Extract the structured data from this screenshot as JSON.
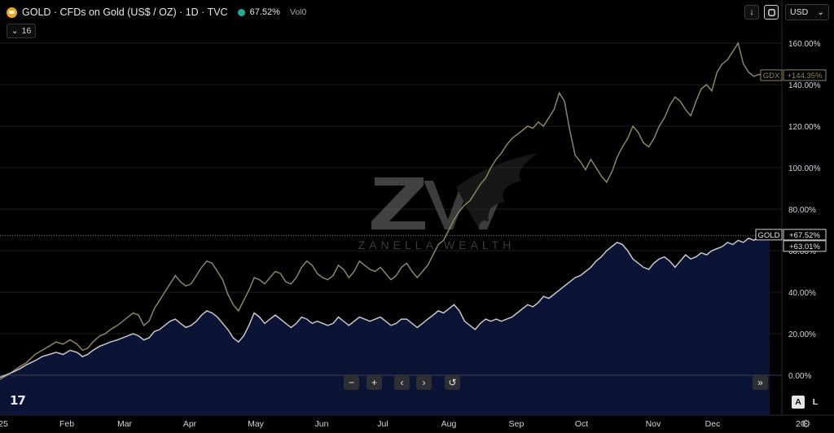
{
  "header": {
    "title": "GOLD · CFDs on Gold (US$ / OZ) · 1D · TVC",
    "value": "67.52%",
    "volume_label": "Vol0",
    "collapse_count": "16"
  },
  "toolbar": {
    "currency": "USD",
    "download_icon": "arrow-down-icon",
    "refresh_icon": "refresh-icon"
  },
  "navigation": {
    "zoom_out": "−",
    "zoom_in": "+",
    "scroll_left": "‹",
    "scroll_right": "›",
    "reset": "↺",
    "go_to_realtime": "»"
  },
  "scale_buttons": {
    "auto": "A",
    "log": "L"
  },
  "watermark": {
    "text": "ZANELLA WEALTH"
  },
  "logo": {
    "text": "17"
  },
  "colors": {
    "background": "#000000",
    "gold_line": "#c8c8c8",
    "gold_fill": "#0b1434",
    "gdx_line": "#8c8563",
    "grid": "#1e1e1e",
    "accent": "#22ab94"
  },
  "chart_data": {
    "type": "line",
    "x_labels": [
      "25",
      "Feb",
      "Mar",
      "Apr",
      "May",
      "Jun",
      "Jul",
      "Aug",
      "Sep",
      "Oct",
      "Nov",
      "Dec",
      "20"
    ],
    "y_ticks": [
      "160.00%",
      "140.00%",
      "120.00%",
      "100.00%",
      "80.00%",
      "60.00%",
      "40.00%",
      "20.00%",
      "0.00%"
    ],
    "ylim": [
      -7,
      170
    ],
    "series": [
      {
        "name": "GOLD",
        "last_label": "+67.52%",
        "secondary_label": "+63.01%",
        "values": [
          [
            0,
            -1
          ],
          [
            6,
            1
          ],
          [
            11,
            3
          ],
          [
            15,
            5
          ],
          [
            20,
            7
          ],
          [
            24,
            9
          ],
          [
            28,
            10
          ],
          [
            32,
            11
          ],
          [
            36,
            10
          ],
          [
            40,
            12
          ],
          [
            44,
            11
          ],
          [
            47,
            9
          ],
          [
            50,
            10
          ],
          [
            53,
            12
          ],
          [
            57,
            14
          ],
          [
            60,
            15
          ],
          [
            63,
            16
          ],
          [
            67,
            17
          ],
          [
            70,
            18
          ],
          [
            73,
            19
          ],
          [
            76,
            20
          ],
          [
            79,
            19
          ],
          [
            82,
            17
          ],
          [
            85,
            18
          ],
          [
            88,
            21
          ],
          [
            91,
            22
          ],
          [
            94,
            24
          ],
          [
            97,
            26
          ],
          [
            100,
            27
          ],
          [
            103,
            25
          ],
          [
            106,
            23
          ],
          [
            109,
            24
          ],
          [
            112,
            26
          ],
          [
            115,
            29
          ],
          [
            118,
            31
          ],
          [
            121,
            30
          ],
          [
            124,
            28
          ],
          [
            127,
            25
          ],
          [
            130,
            22
          ],
          [
            133,
            18
          ],
          [
            136,
            16
          ],
          [
            139,
            19
          ],
          [
            142,
            24
          ],
          [
            145,
            30
          ],
          [
            148,
            28
          ],
          [
            151,
            25
          ],
          [
            154,
            27
          ],
          [
            157,
            29
          ],
          [
            160,
            27
          ],
          [
            163,
            25
          ],
          [
            166,
            23
          ],
          [
            169,
            25
          ],
          [
            172,
            28
          ],
          [
            175,
            27
          ],
          [
            178,
            25
          ],
          [
            181,
            26
          ],
          [
            184,
            25
          ],
          [
            187,
            24
          ],
          [
            190,
            25
          ],
          [
            193,
            28
          ],
          [
            196,
            26
          ],
          [
            199,
            24
          ],
          [
            202,
            26
          ],
          [
            205,
            28
          ],
          [
            208,
            27
          ],
          [
            211,
            26
          ],
          [
            214,
            27
          ],
          [
            217,
            28
          ],
          [
            220,
            26
          ],
          [
            223,
            24
          ],
          [
            226,
            25
          ],
          [
            229,
            27
          ],
          [
            232,
            27
          ],
          [
            235,
            25
          ],
          [
            238,
            23
          ],
          [
            241,
            25
          ],
          [
            244,
            27
          ],
          [
            247,
            29
          ],
          [
            250,
            31
          ],
          [
            253,
            30
          ],
          [
            256,
            32
          ],
          [
            259,
            34
          ],
          [
            262,
            31
          ],
          [
            265,
            26
          ],
          [
            268,
            24
          ],
          [
            271,
            22
          ],
          [
            274,
            25
          ],
          [
            277,
            27
          ],
          [
            280,
            26
          ],
          [
            283,
            27
          ],
          [
            286,
            26
          ],
          [
            289,
            27
          ],
          [
            292,
            28
          ],
          [
            295,
            30
          ],
          [
            298,
            32
          ],
          [
            301,
            34
          ],
          [
            304,
            33
          ],
          [
            307,
            35
          ],
          [
            310,
            38
          ],
          [
            313,
            37
          ],
          [
            316,
            39
          ],
          [
            319,
            41
          ],
          [
            322,
            43
          ],
          [
            325,
            45
          ],
          [
            328,
            47
          ],
          [
            331,
            48
          ],
          [
            334,
            50
          ],
          [
            337,
            52
          ],
          [
            340,
            55
          ],
          [
            343,
            57
          ],
          [
            346,
            60
          ],
          [
            349,
            62
          ],
          [
            352,
            64
          ],
          [
            355,
            63
          ],
          [
            358,
            60
          ],
          [
            361,
            56
          ],
          [
            364,
            54
          ],
          [
            367,
            52
          ],
          [
            370,
            51
          ],
          [
            373,
            54
          ],
          [
            376,
            56
          ],
          [
            379,
            57
          ],
          [
            382,
            55
          ],
          [
            385,
            52
          ],
          [
            388,
            55
          ],
          [
            391,
            58
          ],
          [
            394,
            56
          ],
          [
            397,
            57
          ],
          [
            400,
            59
          ],
          [
            403,
            58
          ],
          [
            406,
            60
          ],
          [
            409,
            61
          ],
          [
            412,
            62
          ],
          [
            415,
            64
          ],
          [
            418,
            63
          ],
          [
            421,
            65
          ],
          [
            424,
            64
          ],
          [
            427,
            66
          ],
          [
            430,
            65
          ],
          [
            433,
            67
          ],
          [
            436,
            66
          ],
          [
            439,
            67.52
          ]
        ]
      },
      {
        "name": "GDX",
        "last_label": "+144.35%",
        "values": [
          [
            0,
            -2
          ],
          [
            6,
            1
          ],
          [
            11,
            4
          ],
          [
            15,
            6
          ],
          [
            20,
            10
          ],
          [
            24,
            12
          ],
          [
            28,
            14
          ],
          [
            32,
            16
          ],
          [
            36,
            15
          ],
          [
            40,
            17
          ],
          [
            44,
            15
          ],
          [
            47,
            12
          ],
          [
            50,
            13
          ],
          [
            53,
            16
          ],
          [
            57,
            19
          ],
          [
            60,
            20
          ],
          [
            63,
            22
          ],
          [
            67,
            24
          ],
          [
            70,
            26
          ],
          [
            73,
            28
          ],
          [
            76,
            30
          ],
          [
            79,
            29
          ],
          [
            82,
            24
          ],
          [
            85,
            26
          ],
          [
            88,
            32
          ],
          [
            91,
            36
          ],
          [
            94,
            40
          ],
          [
            97,
            44
          ],
          [
            100,
            48
          ],
          [
            103,
            45
          ],
          [
            106,
            43
          ],
          [
            109,
            44
          ],
          [
            112,
            48
          ],
          [
            115,
            52
          ],
          [
            118,
            55
          ],
          [
            121,
            54
          ],
          [
            124,
            50
          ],
          [
            127,
            46
          ],
          [
            130,
            39
          ],
          [
            133,
            34
          ],
          [
            136,
            31
          ],
          [
            139,
            36
          ],
          [
            142,
            41
          ],
          [
            145,
            47
          ],
          [
            148,
            46
          ],
          [
            151,
            44
          ],
          [
            154,
            47
          ],
          [
            157,
            50
          ],
          [
            160,
            49
          ],
          [
            163,
            45
          ],
          [
            166,
            44
          ],
          [
            169,
            47
          ],
          [
            172,
            52
          ],
          [
            175,
            55
          ],
          [
            178,
            53
          ],
          [
            181,
            49
          ],
          [
            184,
            47
          ],
          [
            187,
            46
          ],
          [
            190,
            48
          ],
          [
            193,
            53
          ],
          [
            196,
            51
          ],
          [
            199,
            47
          ],
          [
            202,
            50
          ],
          [
            205,
            55
          ],
          [
            208,
            53
          ],
          [
            211,
            51
          ],
          [
            214,
            50
          ],
          [
            217,
            52
          ],
          [
            220,
            49
          ],
          [
            223,
            46
          ],
          [
            226,
            48
          ],
          [
            229,
            52
          ],
          [
            232,
            54
          ],
          [
            235,
            50
          ],
          [
            238,
            47
          ],
          [
            241,
            50
          ],
          [
            244,
            53
          ],
          [
            247,
            58
          ],
          [
            250,
            63
          ],
          [
            253,
            65
          ],
          [
            256,
            70
          ],
          [
            259,
            75
          ],
          [
            262,
            79
          ],
          [
            265,
            82
          ],
          [
            268,
            84
          ],
          [
            271,
            88
          ],
          [
            274,
            92
          ],
          [
            277,
            95
          ],
          [
            280,
            100
          ],
          [
            283,
            104
          ],
          [
            286,
            107
          ],
          [
            289,
            111
          ],
          [
            292,
            114
          ],
          [
            295,
            116
          ],
          [
            298,
            118
          ],
          [
            301,
            120
          ],
          [
            304,
            119
          ],
          [
            307,
            122
          ],
          [
            310,
            120
          ],
          [
            313,
            124
          ],
          [
            316,
            128
          ],
          [
            319,
            136
          ],
          [
            322,
            132
          ],
          [
            325,
            118
          ],
          [
            328,
            106
          ],
          [
            331,
            103
          ],
          [
            334,
            99
          ],
          [
            337,
            104
          ],
          [
            340,
            100
          ],
          [
            343,
            96
          ],
          [
            346,
            93
          ],
          [
            349,
            98
          ],
          [
            352,
            105
          ],
          [
            355,
            110
          ],
          [
            358,
            114
          ],
          [
            361,
            120
          ],
          [
            364,
            117
          ],
          [
            367,
            112
          ],
          [
            370,
            110
          ],
          [
            373,
            114
          ],
          [
            376,
            120
          ],
          [
            379,
            124
          ],
          [
            382,
            130
          ],
          [
            385,
            134
          ],
          [
            388,
            132
          ],
          [
            391,
            128
          ],
          [
            394,
            125
          ],
          [
            397,
            132
          ],
          [
            400,
            138
          ],
          [
            403,
            140
          ],
          [
            406,
            137
          ],
          [
            409,
            146
          ],
          [
            412,
            150
          ],
          [
            415,
            152
          ],
          [
            418,
            156
          ],
          [
            421,
            160
          ],
          [
            424,
            150
          ],
          [
            427,
            146
          ],
          [
            430,
            144
          ],
          [
            433,
            145
          ],
          [
            436,
            144
          ],
          [
            439,
            144.35
          ]
        ]
      }
    ],
    "grid": true,
    "legend": "right-axis-labels"
  }
}
